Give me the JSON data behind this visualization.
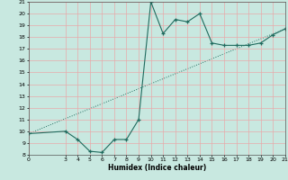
{
  "xlabel": "Humidex (Indice chaleur)",
  "line1_x": [
    0,
    3,
    4,
    5,
    6,
    7,
    8,
    9,
    10,
    11,
    12,
    13,
    14,
    15,
    16,
    17,
    18,
    19,
    20,
    21
  ],
  "line1_y": [
    9.8,
    10.0,
    9.3,
    8.3,
    8.2,
    9.3,
    9.3,
    11.0,
    21.0,
    18.3,
    19.5,
    19.3,
    20.0,
    17.5,
    17.3,
    17.3,
    17.3,
    17.5,
    18.2,
    18.7
  ],
  "line2_x": [
    0,
    21
  ],
  "line2_y": [
    9.8,
    18.7
  ],
  "color": "#1f6b5e",
  "bg_color": "#c8e8e0",
  "grid_major_color": "#e8aaaa",
  "grid_minor_color": "#e8cccc",
  "xlim": [
    0,
    21
  ],
  "ylim": [
    8,
    21
  ],
  "xticks": [
    0,
    3,
    4,
    5,
    6,
    7,
    8,
    9,
    10,
    11,
    12,
    13,
    14,
    15,
    16,
    17,
    18,
    19,
    20,
    21
  ],
  "yticks": [
    8,
    9,
    10,
    11,
    12,
    13,
    14,
    15,
    16,
    17,
    18,
    19,
    20,
    21
  ]
}
